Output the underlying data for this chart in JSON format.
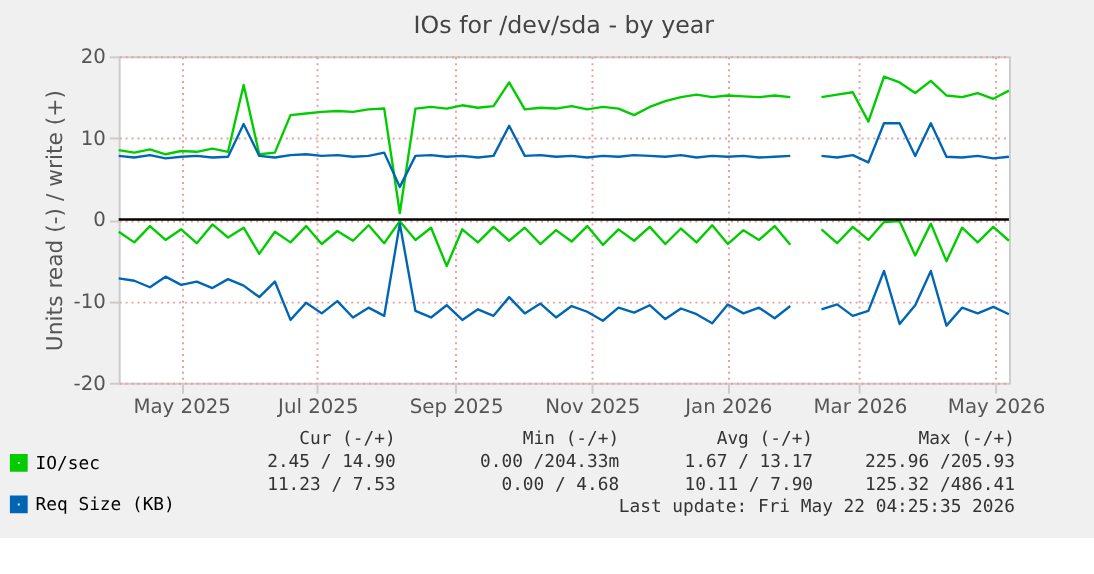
{
  "chart_data": {
    "type": "line",
    "title": "IOs for /dev/sda - by year",
    "ylabel": "Units read (-) / write (+)",
    "x": [
      "2025-04-03",
      "2025-04-10",
      "2025-04-17",
      "2025-04-24",
      "2025-05-01",
      "2025-05-08",
      "2025-05-15",
      "2025-05-22",
      "2025-05-29",
      "2025-06-05",
      "2025-06-12",
      "2025-06-19",
      "2025-06-26",
      "2025-07-03",
      "2025-07-10",
      "2025-07-17",
      "2025-07-24",
      "2025-07-31",
      "2025-08-07",
      "2025-08-14",
      "2025-08-21",
      "2025-08-28",
      "2025-09-04",
      "2025-09-11",
      "2025-09-18",
      "2025-09-25",
      "2025-10-02",
      "2025-10-09",
      "2025-10-16",
      "2025-10-23",
      "2025-10-30",
      "2025-11-06",
      "2025-11-13",
      "2025-11-20",
      "2025-11-27",
      "2025-12-04",
      "2025-12-11",
      "2025-12-18",
      "2025-12-25",
      "2026-01-01",
      "2026-01-08",
      "2026-01-15",
      "2026-01-22",
      "2026-01-29",
      "2026-02-05",
      "2026-02-12",
      "2026-02-19",
      "2026-02-26",
      "2026-03-05",
      "2026-03-12",
      "2026-03-19",
      "2026-03-26",
      "2026-04-02",
      "2026-04-09",
      "2026-04-16",
      "2026-04-23",
      "2026-04-30",
      "2026-05-07"
    ],
    "series": [
      {
        "name": "IO/sec",
        "color": "#00cc00",
        "values": [
          8.5,
          8.2,
          8.6,
          8.0,
          8.4,
          8.3,
          8.7,
          8.3,
          16.5,
          8.0,
          8.2,
          12.8,
          13.0,
          13.2,
          13.3,
          13.2,
          13.5,
          13.6,
          0.8,
          13.6,
          13.8,
          13.6,
          14.0,
          13.7,
          13.9,
          16.8,
          13.5,
          13.7,
          13.6,
          13.9,
          13.5,
          13.8,
          13.6,
          12.8,
          13.8,
          14.5,
          15.0,
          15.3,
          15.0,
          15.2,
          15.1,
          15.0,
          15.2,
          15.0,
          null,
          15.0,
          15.3,
          15.6,
          12.0,
          17.5,
          16.8,
          15.5,
          17.0,
          15.2,
          15.0,
          15.5,
          14.8,
          15.8
        ]
      },
      {
        "color": "#00cc00",
        "values": [
          -1.5,
          -2.8,
          -0.8,
          -2.5,
          -1.2,
          -2.9,
          -0.6,
          -2.2,
          -1.0,
          -4.2,
          -1.5,
          -2.8,
          -0.8,
          -3.0,
          -1.4,
          -2.6,
          -0.7,
          -2.9,
          -0.2,
          -2.5,
          -1.0,
          -5.7,
          -1.2,
          -2.8,
          -0.9,
          -2.6,
          -1.0,
          -3.0,
          -1.3,
          -2.7,
          -0.8,
          -3.1,
          -1.2,
          -2.6,
          -0.9,
          -3.0,
          -1.1,
          -2.8,
          -0.7,
          -3.0,
          -1.3,
          -2.5,
          -0.8,
          -3.1,
          null,
          -1.2,
          -2.9,
          -0.9,
          -2.5,
          -0.3,
          -0.2,
          -4.4,
          -0.5,
          -5.1,
          -1.0,
          -2.8,
          -0.9,
          -2.6
        ]
      },
      {
        "name": "Req Size (KB)",
        "color": "#0066b3",
        "values": [
          7.8,
          7.6,
          7.9,
          7.5,
          7.7,
          7.8,
          7.6,
          7.7,
          11.7,
          7.8,
          7.6,
          7.9,
          8.0,
          7.8,
          7.9,
          7.7,
          7.8,
          8.2,
          4.0,
          7.8,
          7.9,
          7.7,
          7.8,
          7.6,
          7.8,
          11.5,
          7.8,
          7.9,
          7.7,
          7.8,
          7.6,
          7.8,
          7.7,
          7.9,
          7.8,
          7.7,
          7.9,
          7.6,
          7.8,
          7.7,
          7.8,
          7.6,
          7.7,
          7.8,
          null,
          7.8,
          7.6,
          7.9,
          7.0,
          11.8,
          11.8,
          7.8,
          11.8,
          7.7,
          7.6,
          7.8,
          7.5,
          7.7
        ]
      },
      {
        "color": "#0066b3",
        "values": [
          -7.2,
          -7.5,
          -8.3,
          -7.0,
          -8.0,
          -7.6,
          -8.4,
          -7.3,
          -8.1,
          -9.5,
          -7.6,
          -12.3,
          -10.2,
          -11.5,
          -10.0,
          -12.0,
          -10.8,
          -11.8,
          -0.5,
          -11.2,
          -12.0,
          -10.5,
          -12.3,
          -11.0,
          -11.8,
          -9.5,
          -11.5,
          -10.3,
          -12.0,
          -10.6,
          -11.3,
          -12.4,
          -10.8,
          -11.4,
          -10.5,
          -12.2,
          -10.9,
          -11.6,
          -12.7,
          -10.4,
          -11.5,
          -10.8,
          -12.1,
          -10.6,
          null,
          -11.0,
          -10.4,
          -11.8,
          -11.2,
          -6.3,
          -12.8,
          -10.5,
          -6.3,
          -13.0,
          -10.8,
          -11.5,
          -10.7,
          -11.6
        ]
      }
    ],
    "xlim": [
      "2025-04-03",
      "2026-05-07"
    ],
    "xticks": [
      {
        "value": "2025-05-01",
        "label": "May 2025"
      },
      {
        "value": "2025-07-01",
        "label": "Jul 2025"
      },
      {
        "value": "2025-09-01",
        "label": "Sep 2025"
      },
      {
        "value": "2025-11-01",
        "label": "Nov 2025"
      },
      {
        "value": "2026-01-01",
        "label": "Jan 2026"
      },
      {
        "value": "2026-03-01",
        "label": "Mar 2026"
      },
      {
        "value": "2026-05-01",
        "label": "May 2026"
      }
    ],
    "ylim": [
      -20,
      20
    ],
    "yticks": [
      -20,
      -10,
      0,
      10,
      20
    ],
    "ref_lines": [
      {
        "axis": "y",
        "value": 0,
        "color": "#000000"
      }
    ],
    "grid": true,
    "legend": "bottom",
    "marker": "none",
    "line_style": "solid",
    "annotations": [
      "Cur (-/+)",
      "Min (-/+)",
      "Avg (-/+)",
      "Max (-/+)",
      "2.45 / 14.90",
      "0.00 /204.33m",
      "1.67 / 13.17",
      "225.96 /205.93",
      "11.23 /  7.53",
      "0.00 /   4.68",
      "10.11 /   7.90",
      "125.32 /486.41",
      "Last update: Fri May 22 04:25:35 2026"
    ]
  }
}
